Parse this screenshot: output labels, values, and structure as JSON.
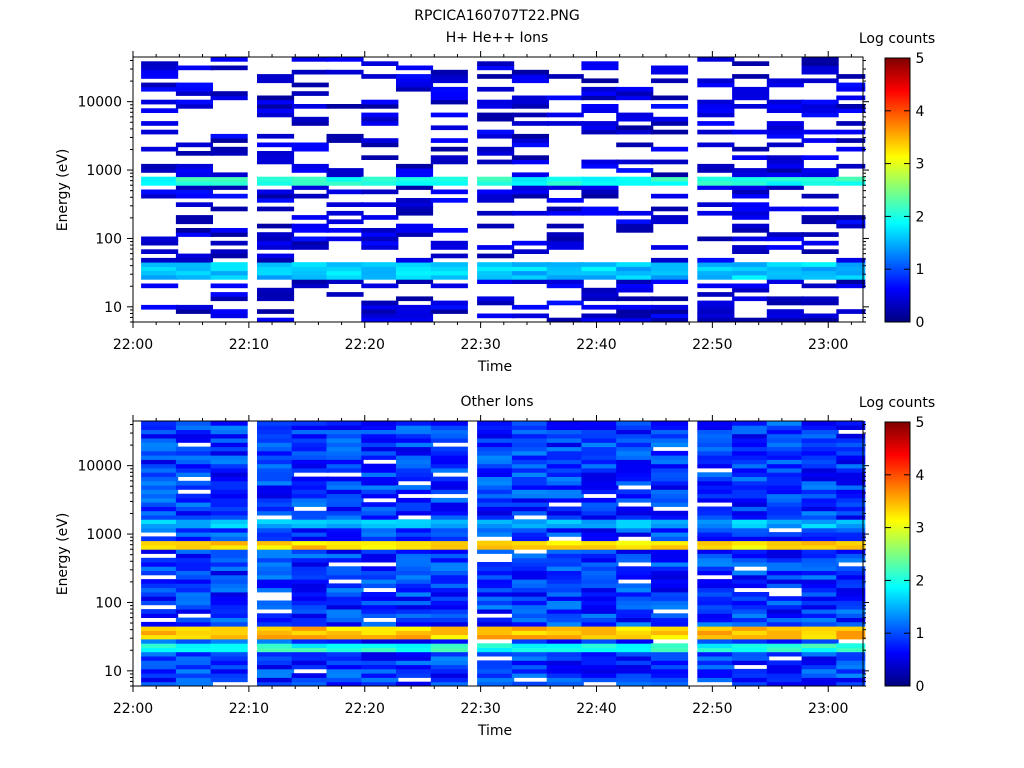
{
  "figure_title": "RPCICA160707T22.PNG",
  "colormap": [
    "#00007f",
    "#0000ff",
    "#007fff",
    "#00ffff",
    "#7fff7f",
    "#ffff00",
    "#ff7f00",
    "#ff0000",
    "#7f0000"
  ],
  "chart_data": [
    {
      "type": "heatmap",
      "title": "H+ He++ Ions",
      "xlabel": "Time",
      "ylabel": "Energy (eV)",
      "y_scale": "log",
      "xlim": [
        "22:00",
        "23:03"
      ],
      "ylim": [
        6,
        45000
      ],
      "x_ticks": [
        "22:00",
        "22:10",
        "22:20",
        "22:30",
        "22:40",
        "22:50",
        "23:00"
      ],
      "y_ticks": [
        10,
        100,
        1000,
        10000
      ],
      "y_tick_labels": [
        "10",
        "100",
        "1000",
        "10000"
      ],
      "colorbar": {
        "label": "Log counts",
        "range": [
          0,
          5
        ],
        "ticks": [
          "0",
          "1",
          "2",
          "3",
          "4",
          "5"
        ]
      },
      "time_bins": [
        "22:00",
        "22:03",
        "22:06",
        "22:10",
        "22:13",
        "22:16",
        "22:19",
        "22:22",
        "22:25",
        "22:29",
        "22:32",
        "22:35",
        "22:38",
        "22:41",
        "22:44",
        "22:48",
        "22:51",
        "22:54",
        "22:57",
        "23:00"
      ],
      "bands": [
        {
          "energy_range": [
            560,
            820
          ],
          "log_counts": 2.0
        },
        {
          "energy_range": [
            27,
            44
          ],
          "log_counts": 1.6
        }
      ],
      "background": "sparse, mostly 0-1 log counts with empty cells"
    },
    {
      "type": "heatmap",
      "title": "Other Ions",
      "xlabel": "Time",
      "ylabel": "Energy (eV)",
      "y_scale": "log",
      "xlim": [
        "22:00",
        "23:03"
      ],
      "ylim": [
        6,
        45000
      ],
      "x_ticks": [
        "22:00",
        "22:10",
        "22:20",
        "22:30",
        "22:40",
        "22:50",
        "23:00"
      ],
      "y_ticks": [
        10,
        100,
        1000,
        10000
      ],
      "y_tick_labels": [
        "10",
        "100",
        "1000",
        "10000"
      ],
      "colorbar": {
        "label": "Log counts",
        "range": [
          0,
          5
        ],
        "ticks": [
          "0",
          "1",
          "2",
          "3",
          "4",
          "5"
        ]
      },
      "time_bins": [
        "22:00",
        "22:03",
        "22:06",
        "22:10",
        "22:13",
        "22:16",
        "22:19",
        "22:22",
        "22:25",
        "22:29",
        "22:32",
        "22:35",
        "22:38",
        "22:41",
        "22:44",
        "22:48",
        "22:51",
        "22:54",
        "22:57",
        "23:00"
      ],
      "bands": [
        {
          "energy_range": [
            600,
            850
          ],
          "log_counts": 3.3
        },
        {
          "energy_range": [
            1200,
            1700
          ],
          "log_counts": 1.5
        },
        {
          "energy_range": [
            28,
            42
          ],
          "log_counts": 3.4
        },
        {
          "energy_range": [
            20,
            27
          ],
          "log_counts": 2.0
        }
      ],
      "background": "dense, mostly 0.5-1.3 log counts"
    }
  ]
}
